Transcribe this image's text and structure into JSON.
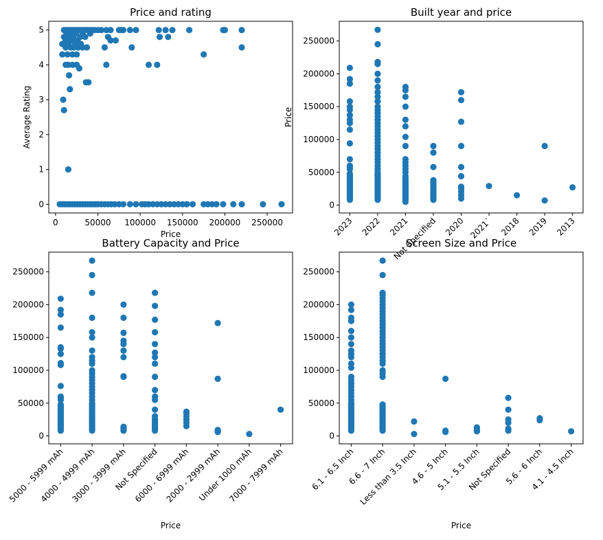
{
  "chart_data": [
    {
      "type": "scatter",
      "title": "Price and rating",
      "xlabel": "Price",
      "ylabel": "Average Rating",
      "x_axis": "numeric",
      "xlim": [
        -8000,
        280000
      ],
      "ylim": [
        -0.25,
        5.25
      ],
      "xticks": [
        0,
        50000,
        100000,
        150000,
        200000,
        250000
      ],
      "xtick_labels": [
        "0",
        "50000",
        "100000",
        "150000",
        "200000",
        "250000"
      ],
      "yticks": [
        0,
        1,
        2,
        3,
        4,
        5
      ],
      "ytick_labels": [
        "0",
        "1",
        "2",
        "3",
        "4",
        "5"
      ],
      "grid": false,
      "points": [
        [
          9000,
          3.0
        ],
        [
          10000,
          2.7
        ],
        [
          15000,
          1.0
        ],
        [
          17000,
          3.3
        ],
        [
          16000,
          3.7
        ],
        [
          12000,
          4.0
        ],
        [
          15000,
          4.0
        ],
        [
          20000,
          4.0
        ],
        [
          25000,
          4.0
        ],
        [
          28000,
          3.9
        ],
        [
          36000,
          3.5
        ],
        [
          39000,
          3.5
        ],
        [
          60000,
          4.0
        ],
        [
          110000,
          4.0
        ],
        [
          120000,
          4.0
        ],
        [
          8000,
          4.3
        ],
        [
          14000,
          4.3
        ],
        [
          20000,
          4.3
        ],
        [
          25000,
          4.3
        ],
        [
          175000,
          4.3
        ],
        [
          12000,
          4.5
        ],
        [
          18000,
          4.5
        ],
        [
          22000,
          4.5
        ],
        [
          27000,
          4.5
        ],
        [
          32000,
          4.5
        ],
        [
          37000,
          4.5
        ],
        [
          58000,
          4.5
        ],
        [
          90000,
          4.5
        ],
        [
          220000,
          4.5
        ],
        [
          8000,
          4.6
        ],
        [
          15000,
          4.6
        ],
        [
          23000,
          4.6
        ],
        [
          30000,
          4.6
        ],
        [
          12000,
          4.7
        ],
        [
          19000,
          4.7
        ],
        [
          26000,
          4.7
        ],
        [
          65000,
          4.7
        ],
        [
          71000,
          4.7
        ],
        [
          10000,
          4.8
        ],
        [
          16000,
          4.8
        ],
        [
          21000,
          4.8
        ],
        [
          29000,
          4.8
        ],
        [
          35000,
          4.8
        ],
        [
          62000,
          4.8
        ],
        [
          123000,
          4.8
        ],
        [
          133000,
          4.8
        ],
        [
          13000,
          4.9
        ],
        [
          18000,
          4.9
        ],
        [
          24000,
          4.9
        ],
        [
          32000,
          4.9
        ],
        [
          41000,
          4.9
        ],
        [
          10000,
          5.0
        ],
        [
          13000,
          5.0
        ],
        [
          16000,
          5.0
        ],
        [
          19000,
          5.0
        ],
        [
          22000,
          5.0
        ],
        [
          25000,
          5.0
        ],
        [
          28000,
          5.0
        ],
        [
          31000,
          5.0
        ],
        [
          34000,
          5.0
        ],
        [
          37000,
          5.0
        ],
        [
          40000,
          5.0
        ],
        [
          43000,
          5.0
        ],
        [
          46000,
          5.0
        ],
        [
          50000,
          5.0
        ],
        [
          54000,
          5.0
        ],
        [
          60000,
          5.0
        ],
        [
          65000,
          5.0
        ],
        [
          75000,
          5.0
        ],
        [
          78000,
          5.0
        ],
        [
          80000,
          5.0
        ],
        [
          88000,
          5.0
        ],
        [
          95000,
          5.0
        ],
        [
          122000,
          5.0
        ],
        [
          130000,
          5.0
        ],
        [
          138000,
          5.0
        ],
        [
          158000,
          5.0
        ],
        [
          198000,
          5.0
        ],
        [
          200000,
          5.0
        ],
        [
          220000,
          5.0
        ],
        [
          5000,
          0
        ],
        [
          8000,
          0
        ],
        [
          11000,
          0
        ],
        [
          14000,
          0
        ],
        [
          17000,
          0
        ],
        [
          20000,
          0
        ],
        [
          23000,
          0
        ],
        [
          26000,
          0
        ],
        [
          29000,
          0
        ],
        [
          32000,
          0
        ],
        [
          35000,
          0
        ],
        [
          38000,
          0
        ],
        [
          41000,
          0
        ],
        [
          44000,
          0
        ],
        [
          47000,
          0
        ],
        [
          50000,
          0
        ],
        [
          54000,
          0
        ],
        [
          58000,
          0
        ],
        [
          62000,
          0
        ],
        [
          66000,
          0
        ],
        [
          70000,
          0
        ],
        [
          75000,
          0
        ],
        [
          80000,
          0
        ],
        [
          88000,
          0
        ],
        [
          95000,
          0
        ],
        [
          102000,
          0
        ],
        [
          106000,
          0
        ],
        [
          110000,
          0
        ],
        [
          115000,
          0
        ],
        [
          120000,
          0
        ],
        [
          125000,
          0
        ],
        [
          130000,
          0
        ],
        [
          135000,
          0
        ],
        [
          140000,
          0
        ],
        [
          145000,
          0
        ],
        [
          150000,
          0
        ],
        [
          155000,
          0
        ],
        [
          162000,
          0
        ],
        [
          175000,
          0
        ],
        [
          180000,
          0
        ],
        [
          185000,
          0
        ],
        [
          190000,
          0
        ],
        [
          198000,
          0
        ],
        [
          210000,
          0
        ],
        [
          220000,
          0
        ],
        [
          245000,
          0
        ],
        [
          267000,
          0
        ]
      ]
    },
    {
      "type": "scatter",
      "title": "Built year and price",
      "xlabel": "",
      "ylabel": "Price",
      "x_axis": "categorical",
      "categories": [
        "2023",
        "2022",
        "2021",
        "Not Specified",
        "2020",
        "2021`",
        "2018",
        "2019",
        "2013"
      ],
      "ylim": [
        -12000,
        280000
      ],
      "yticks": [
        0,
        50000,
        100000,
        150000,
        200000,
        250000
      ],
      "ytick_labels": [
        "0",
        "50000",
        "100000",
        "150000",
        "200000",
        "250000"
      ],
      "grid": false,
      "columns": [
        [
          8000,
          10000,
          12000,
          14000,
          16000,
          18000,
          20000,
          22000,
          24000,
          26000,
          28000,
          30000,
          32000,
          34000,
          36000,
          38000,
          40000,
          42000,
          44000,
          46000,
          48000,
          55000,
          58000,
          60000,
          70000,
          94000,
          115000,
          125000,
          130000,
          137000,
          145000,
          150000,
          158000,
          185000,
          192000,
          209000
        ],
        [
          8000,
          10000,
          12000,
          14000,
          16000,
          18000,
          20000,
          22000,
          24000,
          26000,
          28000,
          30000,
          32000,
          34000,
          36000,
          38000,
          40000,
          42000,
          44000,
          46000,
          48000,
          50000,
          55000,
          60000,
          65000,
          70000,
          75000,
          80000,
          85000,
          90000,
          95000,
          100000,
          105000,
          110000,
          115000,
          120000,
          125000,
          130000,
          135000,
          140000,
          145000,
          150000,
          158000,
          165000,
          172000,
          180000,
          190000,
          200000,
          215000,
          218000,
          245000,
          267000
        ],
        [
          5000,
          8000,
          10000,
          12000,
          14000,
          16000,
          18000,
          20000,
          22000,
          24000,
          26000,
          28000,
          30000,
          32000,
          34000,
          36000,
          38000,
          40000,
          44000,
          50000,
          55000,
          60000,
          65000,
          70000,
          90000,
          104000,
          120000,
          130000,
          150000,
          165000,
          175000,
          180000
        ],
        [
          8000,
          10000,
          12000,
          14000,
          16000,
          18000,
          20000,
          22000,
          24000,
          26000,
          28000,
          30000,
          32000,
          35000,
          38000,
          58000,
          80000,
          90000
        ],
        [
          10000,
          15000,
          20000,
          25000,
          28000,
          44000,
          58000,
          90000,
          127000,
          160000,
          172000
        ],
        [
          29000
        ],
        [
          15000
        ],
        [
          7000,
          90000
        ],
        [
          27000
        ]
      ]
    },
    {
      "type": "scatter",
      "title": "Battery Capacity and Price",
      "xlabel": "Price",
      "ylabel": "",
      "x_axis": "categorical",
      "categories": [
        "5000 - 5999 mAh",
        "4000 - 4999 mAh",
        "3000 - 3999 mAh",
        "Not Specified",
        "6000 - 6999 mAh",
        "2000 - 2999 mAh",
        "Under 1000 mAh",
        "7000 - 7999 mAh"
      ],
      "ylim": [
        -12000,
        280000
      ],
      "yticks": [
        0,
        50000,
        100000,
        150000,
        200000,
        250000
      ],
      "ytick_labels": [
        "0",
        "50000",
        "100000",
        "150000",
        "200000",
        "250000"
      ],
      "grid": false,
      "columns": [
        [
          8000,
          10000,
          12000,
          14000,
          16000,
          18000,
          20000,
          22000,
          24000,
          26000,
          28000,
          30000,
          32000,
          34000,
          36000,
          38000,
          40000,
          42000,
          44000,
          46000,
          48000,
          55000,
          58000,
          60000,
          76000,
          108000,
          111000,
          125000,
          133000,
          135000,
          165000,
          185000,
          192000,
          209000
        ],
        [
          8000,
          10000,
          12000,
          14000,
          16000,
          18000,
          20000,
          22000,
          24000,
          26000,
          28000,
          30000,
          32000,
          34000,
          36000,
          38000,
          40000,
          42000,
          44000,
          46000,
          48000,
          50000,
          55000,
          60000,
          65000,
          70000,
          75000,
          80000,
          85000,
          90000,
          95000,
          100000,
          110000,
          115000,
          120000,
          130000,
          150000,
          158000,
          180000,
          218000,
          245000,
          267000
        ],
        [
          8000,
          10000,
          12000,
          14000,
          90000,
          91000,
          120000,
          130000,
          140000,
          145000,
          157000,
          180000,
          200000
        ],
        [
          8000,
          10000,
          12000,
          14000,
          16000,
          18000,
          20000,
          22000,
          24000,
          26000,
          30000,
          40000,
          55000,
          60000,
          70000,
          90000,
          110000,
          120000,
          127000,
          140000,
          158000,
          177000,
          198000,
          218000
        ],
        [
          15000,
          20000,
          25000,
          30000,
          35000,
          37000
        ],
        [
          6000,
          7000,
          8000,
          9000,
          87000,
          172000
        ],
        [
          3000
        ],
        [
          40000
        ]
      ]
    },
    {
      "type": "scatter",
      "title": "Screen Size and Price",
      "xlabel": "Price",
      "ylabel": "",
      "x_axis": "categorical",
      "categories": [
        "6.1 - 6.5 Inch",
        "6.6 - 7 Inch",
        "Less than 3.5 Inch",
        "4.6 - 5 Inch",
        "5.1 - 5.5 Inch",
        "Not Specified",
        "5.6 - 6 Inch",
        "4.1 - 4.5 Inch"
      ],
      "ylim": [
        -12000,
        280000
      ],
      "yticks": [
        0,
        50000,
        100000,
        150000,
        200000,
        250000
      ],
      "ytick_labels": [
        "0",
        "50000",
        "100000",
        "150000",
        "200000",
        "250000"
      ],
      "grid": false,
      "columns": [
        [
          8000,
          10000,
          12000,
          14000,
          16000,
          18000,
          20000,
          22000,
          24000,
          26000,
          28000,
          30000,
          32000,
          34000,
          36000,
          38000,
          40000,
          42000,
          44000,
          46000,
          48000,
          50000,
          55000,
          60000,
          65000,
          70000,
          75000,
          80000,
          85000,
          90000,
          104000,
          110000,
          120000,
          125000,
          130000,
          140000,
          150000,
          160000,
          175000,
          180000,
          192000,
          200000
        ],
        [
          8000,
          10000,
          12000,
          14000,
          16000,
          18000,
          20000,
          22000,
          24000,
          26000,
          28000,
          30000,
          32000,
          34000,
          36000,
          38000,
          40000,
          42000,
          44000,
          46000,
          48000,
          90000,
          95000,
          100000,
          110000,
          115000,
          120000,
          125000,
          130000,
          135000,
          140000,
          145000,
          150000,
          155000,
          160000,
          165000,
          170000,
          175000,
          180000,
          185000,
          190000,
          195000,
          200000,
          205000,
          210000,
          215000,
          218000,
          245000,
          267000
        ],
        [
          3000,
          22000
        ],
        [
          6000,
          8000,
          87000
        ],
        [
          7000,
          8000,
          10000,
          13000
        ],
        [
          8000,
          11000,
          20000,
          25000,
          40000,
          58000
        ],
        [
          24000,
          27000
        ],
        [
          7000
        ]
      ]
    }
  ]
}
